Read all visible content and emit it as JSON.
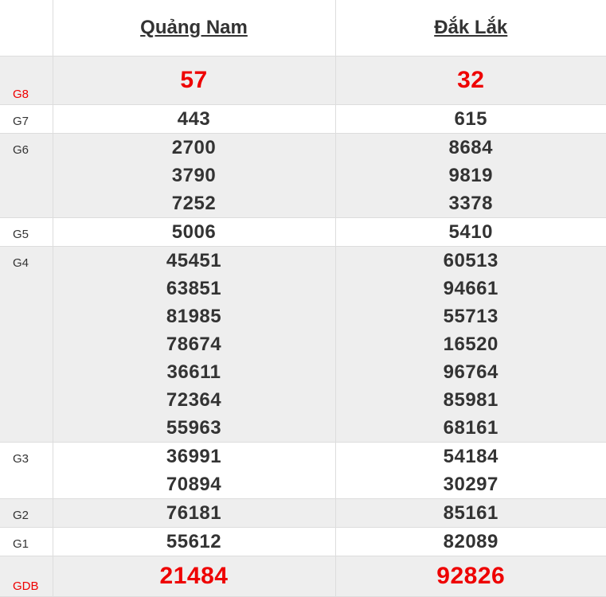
{
  "header": {
    "provinces": [
      "Quảng Nam",
      "Đắk Lắk"
    ]
  },
  "accent_color": "#ee0000",
  "prizes": [
    {
      "label": "G8",
      "special": true,
      "results": [
        [
          "57"
        ],
        [
          "32"
        ]
      ]
    },
    {
      "label": "G7",
      "results": [
        [
          "443"
        ],
        [
          "615"
        ]
      ]
    },
    {
      "label": "G6",
      "results": [
        [
          "2700",
          "3790",
          "7252"
        ],
        [
          "8684",
          "9819",
          "3378"
        ]
      ]
    },
    {
      "label": "G5",
      "results": [
        [
          "5006"
        ],
        [
          "5410"
        ]
      ]
    },
    {
      "label": "G4",
      "results": [
        [
          "45451",
          "63851",
          "81985",
          "78674",
          "36611",
          "72364",
          "55963"
        ],
        [
          "60513",
          "94661",
          "55713",
          "16520",
          "96764",
          "85981",
          "68161"
        ]
      ]
    },
    {
      "label": "G3",
      "results": [
        [
          "36991",
          "70894"
        ],
        [
          "54184",
          "30297"
        ]
      ]
    },
    {
      "label": "G2",
      "results": [
        [
          "76181"
        ],
        [
          "85161"
        ]
      ]
    },
    {
      "label": "G1",
      "results": [
        [
          "55612"
        ],
        [
          "82089"
        ]
      ]
    },
    {
      "label": "GDB",
      "special": true,
      "results": [
        [
          "21484"
        ],
        [
          "92826"
        ]
      ]
    }
  ]
}
